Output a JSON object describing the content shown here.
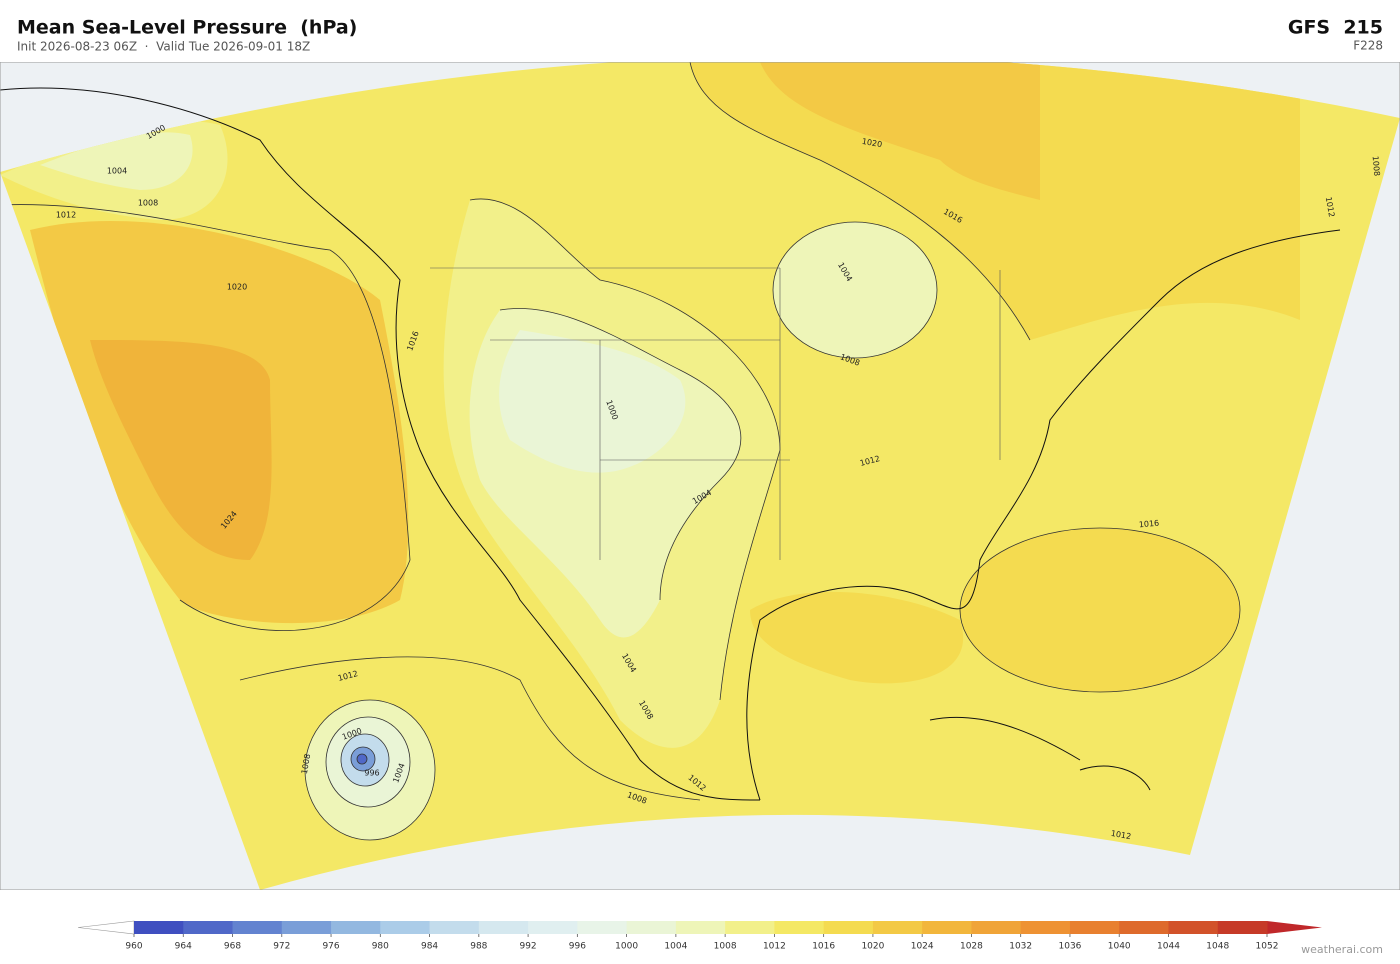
{
  "header": {
    "title": "Mean Sea-Level Pressure  (hPa)",
    "subtitle": "Init 2026-08-23 06Z  ·  Valid Tue 2026-09-01 18Z",
    "model": "GFS  215",
    "forecast_hour": "F228"
  },
  "map": {
    "contour_labels": [
      1000,
      1004,
      1008,
      1012,
      1020,
      1016,
      1024,
      1012,
      1000,
      1008,
      996,
      1004,
      1000,
      1004,
      1004,
      1008,
      1012,
      1008,
      1012,
      1012,
      1016,
      1008,
      1004,
      1016,
      1020,
      1012,
      1008
    ]
  },
  "colorbar": {
    "ticks": [
      960,
      964,
      968,
      972,
      976,
      980,
      984,
      988,
      992,
      996,
      1000,
      1004,
      1008,
      1012,
      1016,
      1020,
      1024,
      1028,
      1032,
      1036,
      1040,
      1044,
      1048,
      1052
    ],
    "colors": [
      "#3f4fc0",
      "#5068c8",
      "#6383d0",
      "#7a9ed8",
      "#93b8e0",
      "#abcce8",
      "#c3dcec",
      "#d5e8ef",
      "#e0eff0",
      "#e8f4e8",
      "#eaf5d6",
      "#eef5b8",
      "#f2f08a",
      "#f4e864",
      "#f4db50",
      "#f3c945",
      "#f2b63c",
      "#f0a438",
      "#ee9233",
      "#e8802f",
      "#de6a2c",
      "#d2522a",
      "#c63a28"
    ]
  },
  "footer": {
    "credit": "weatherai.com"
  }
}
